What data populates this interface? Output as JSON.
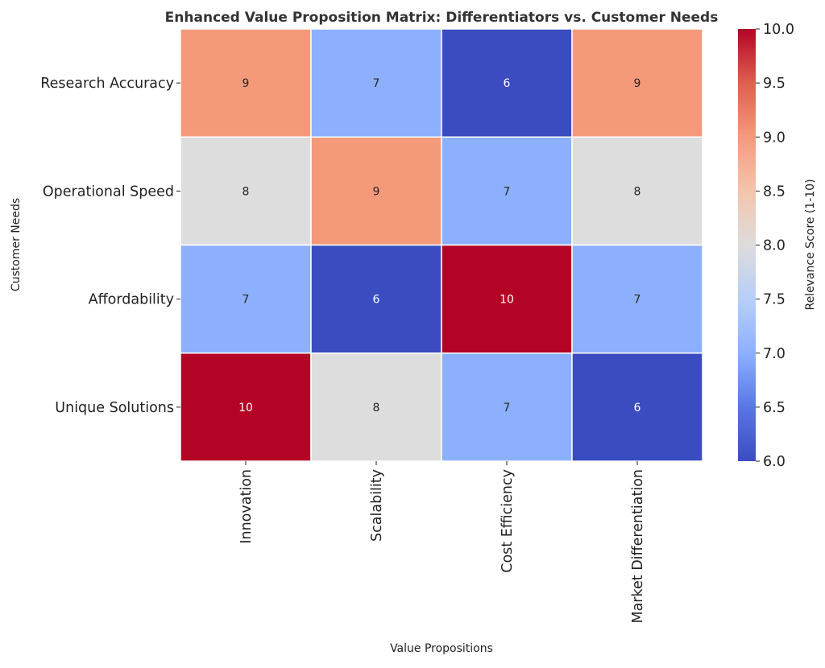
{
  "chart_data": {
    "type": "heatmap",
    "title": "Enhanced Value Proposition Matrix: Differentiators vs. Customer Needs",
    "xlabel": "Value Propositions",
    "ylabel": "Customer Needs",
    "x_categories": [
      "Innovation",
      "Scalability",
      "Cost Efficiency",
      "Market Differentiation"
    ],
    "y_categories": [
      "Research Accuracy",
      "Operational Speed",
      "Affordability",
      "Unique Solutions"
    ],
    "values": [
      [
        9,
        7,
        6,
        9
      ],
      [
        8,
        9,
        7,
        8
      ],
      [
        7,
        6,
        10,
        7
      ],
      [
        10,
        8,
        7,
        6
      ]
    ],
    "annotations": true,
    "colormap": "coolwarm",
    "colorbar": {
      "label": "Relevance Score (1-10)",
      "range": [
        6.0,
        10.0
      ],
      "ticks": [
        "6.0",
        "6.5",
        "7.0",
        "7.5",
        "8.0",
        "8.5",
        "9.0",
        "9.5",
        "10.0"
      ]
    },
    "cell_colors": {
      "6": "#3b4cc0",
      "7": "#8db0fe",
      "8": "#dddddd",
      "9": "#f49a7b",
      "10": "#b40426"
    },
    "grid_line_color": "#ffffff"
  }
}
